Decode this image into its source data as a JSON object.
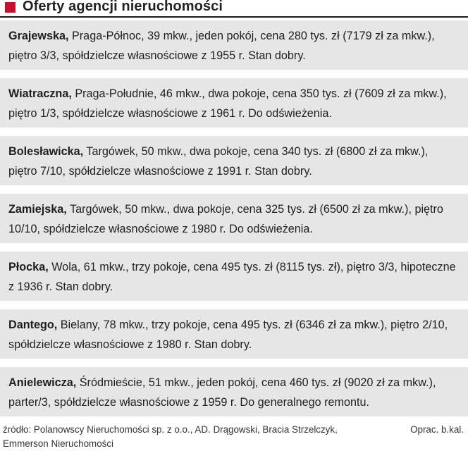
{
  "header": {
    "title": "Oferty agencji nieruchomości",
    "accent_color": "#c8102e"
  },
  "listings": [
    {
      "street": "Grajewska,",
      "details": " Praga-Północ, 39 mkw., jeden pokój, cena 280 tys. zł (7179 zł za mkw.), piętro 3/3, spółdzielcze własnościowe z 1955 r. Stan dobry."
    },
    {
      "street": "Wiatraczna,",
      "details": " Praga-Południe, 46 mkw., dwa pokoje, cena 350 tys. zł (7609 zł za mkw.), piętro 1/3, spółdzielcze własnościowe z 1961 r. Do odświeżenia."
    },
    {
      "street": "Bolesławicka,",
      "details": " Targówek, 50 mkw., dwa pokoje, cena 340 tys. zł (6800 zł za mkw.), piętro 7/10, spółdzielcze własnościowe z 1991 r. Stan dobry."
    },
    {
      "street": "Zamiejska,",
      "details": " Targówek, 50 mkw., dwa pokoje, cena 325 tys. zł (6500 zł za mkw.), piętro 10/10, spółdzielcze własnościowe z 1980 r. Do odświeżenia."
    },
    {
      "street": "Płocka,",
      "details": " Wola, 61 mkw., trzy pokoje, cena 495 tys. zł (8115 tys. zł), piętro 3/3, hipoteczne z 1936 r. Stan dobry."
    },
    {
      "street": "Dantego,",
      "details": " Bielany, 78 mkw., trzy pokoje, cena 495 tys. zł (6346 zł za mkw.), piętro 2/10, spółdzielcze własnościowe z 1980 r. Stan dobry."
    },
    {
      "street": "Anielewicza,",
      "details": " Śródmieście, 51 mkw., jeden pokój, cena 460 tys. zł (9020 zł za mkw.), parter/3, spółdzielcze własnościowe z 1959 r. Do generalnego remontu."
    }
  ],
  "footer": {
    "source": "źródło: Polanowscy Nieruchomości sp. z o.o., AD. Drągowski, Bracia Strzelczyk, Emmerson Nieruchomości",
    "credit": "Oprac. b.kal."
  }
}
